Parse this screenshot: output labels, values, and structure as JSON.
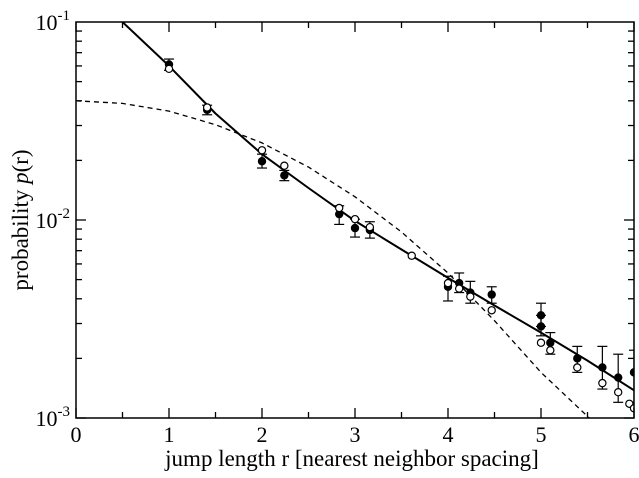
{
  "chart_data": {
    "type": "scatter",
    "title": "",
    "xlabel": "jump length r [nearest neighbor spacing]",
    "ylabel_parts": [
      "probability ",
      "p",
      "(r)"
    ],
    "xlim": [
      0,
      6
    ],
    "ylim": [
      0.001,
      0.1
    ],
    "yscale": "log",
    "grid": false,
    "x_ticks": [
      {
        "value": 0,
        "label": "0"
      },
      {
        "value": 1,
        "label": "1"
      },
      {
        "value": 2,
        "label": "2"
      },
      {
        "value": 3,
        "label": "3"
      },
      {
        "value": 4,
        "label": "4"
      },
      {
        "value": 5,
        "label": "5"
      },
      {
        "value": 6,
        "label": "6"
      }
    ],
    "y_ticks": [
      {
        "value": 0.001,
        "base": "10",
        "exp": "-3"
      },
      {
        "value": 0.01,
        "base": "10",
        "exp": "-2"
      },
      {
        "value": 0.1,
        "base": "10",
        "exp": "-1"
      }
    ],
    "series": [
      {
        "marker": "filled-circle",
        "color": "#000000",
        "points": [
          {
            "x": 1.0,
            "y": 0.061,
            "lo": 0.057,
            "hi": 0.065
          },
          {
            "x": 1.41,
            "y": 0.036,
            "lo": 0.034,
            "hi": 0.038
          },
          {
            "x": 2.0,
            "y": 0.0198,
            "lo": 0.0183,
            "hi": 0.0215
          },
          {
            "x": 2.24,
            "y": 0.0168,
            "lo": 0.0158,
            "hi": 0.0178
          },
          {
            "x": 2.83,
            "y": 0.0107,
            "lo": 0.0095,
            "hi": 0.0118
          },
          {
            "x": 3.0,
            "y": 0.0091,
            "lo": 0.0082,
            "hi": 0.0101
          },
          {
            "x": 3.16,
            "y": 0.0089,
            "lo": 0.0081,
            "hi": 0.0098
          },
          {
            "x": 4.0,
            "y": 0.0046,
            "lo": 0.0039,
            "hi": 0.0052
          },
          {
            "x": 4.12,
            "y": 0.0048,
            "lo": 0.0043,
            "hi": 0.0054
          },
          {
            "x": 4.24,
            "y": 0.0043,
            "lo": 0.0038,
            "hi": 0.0049
          },
          {
            "x": 4.47,
            "y": 0.0042,
            "lo": 0.0038,
            "hi": 0.0046
          },
          {
            "x": 5.0,
            "y": 0.0033,
            "lo": 0.0029,
            "hi": 0.0038
          },
          {
            "x": 5.0,
            "y": 0.0029,
            "lo": 0.0026,
            "hi": 0.0033
          },
          {
            "x": 5.1,
            "y": 0.0024,
            "lo": 0.0021,
            "hi": 0.0027
          },
          {
            "x": 5.39,
            "y": 0.002,
            "lo": 0.0017,
            "hi": 0.0023
          },
          {
            "x": 5.66,
            "y": 0.0018,
            "lo": 0.0014,
            "hi": 0.0023
          },
          {
            "x": 5.83,
            "y": 0.0016,
            "lo": 0.0012,
            "hi": 0.0021
          },
          {
            "x": 6.0,
            "y": 0.0017,
            "lo": 0.0012,
            "hi": 0.0022
          }
        ]
      },
      {
        "marker": "open-circle",
        "color": "#000000",
        "points": [
          {
            "x": 1.0,
            "y": 0.058
          },
          {
            "x": 1.41,
            "y": 0.037
          },
          {
            "x": 2.0,
            "y": 0.0225
          },
          {
            "x": 2.24,
            "y": 0.0188
          },
          {
            "x": 2.83,
            "y": 0.0115
          },
          {
            "x": 3.0,
            "y": 0.0101
          },
          {
            "x": 3.16,
            "y": 0.0092
          },
          {
            "x": 3.61,
            "y": 0.0066
          },
          {
            "x": 4.0,
            "y": 0.0048
          },
          {
            "x": 4.12,
            "y": 0.0045
          },
          {
            "x": 4.24,
            "y": 0.0041
          },
          {
            "x": 4.47,
            "y": 0.0035
          },
          {
            "x": 5.0,
            "y": 0.0024
          },
          {
            "x": 5.1,
            "y": 0.0022
          },
          {
            "x": 5.39,
            "y": 0.0018
          },
          {
            "x": 5.66,
            "y": 0.0015
          },
          {
            "x": 5.83,
            "y": 0.00135
          },
          {
            "x": 5.95,
            "y": 0.00118
          },
          {
            "x": 6.0,
            "y": 0.00112
          }
        ]
      }
    ],
    "curves": [
      {
        "style": "solid",
        "points": [
          [
            0.5,
            0.1
          ],
          [
            1.0,
            0.06
          ],
          [
            1.5,
            0.0345
          ],
          [
            2.0,
            0.0215
          ],
          [
            2.5,
            0.0145
          ],
          [
            3.0,
            0.0099
          ],
          [
            3.5,
            0.0071
          ],
          [
            4.0,
            0.0051
          ],
          [
            4.5,
            0.0037
          ],
          [
            5.0,
            0.0027
          ],
          [
            5.5,
            0.00195
          ],
          [
            6.0,
            0.00138
          ]
        ]
      },
      {
        "style": "dashed",
        "points": [
          [
            0.0,
            0.04
          ],
          [
            0.5,
            0.0388
          ],
          [
            1.0,
            0.0355
          ],
          [
            1.5,
            0.0303
          ],
          [
            2.0,
            0.0245
          ],
          [
            2.5,
            0.0185
          ],
          [
            3.0,
            0.0131
          ],
          [
            3.5,
            0.0087
          ],
          [
            4.0,
            0.0054
          ],
          [
            4.5,
            0.0031
          ],
          [
            5.0,
            0.0017
          ],
          [
            5.5,
            0.00102
          ],
          [
            5.7,
            0.00083
          ]
        ]
      }
    ]
  }
}
